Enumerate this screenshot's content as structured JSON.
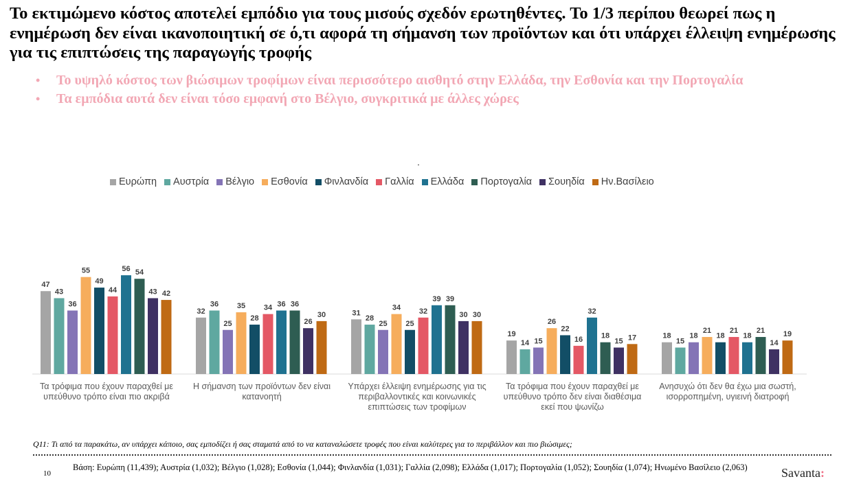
{
  "title": "Το εκτιμώμενο κόστος αποτελεί εμπόδιο για τους μισούς σχεδόν ερωτηθέντες. Το 1/3 περίπου θεωρεί πως η ενημέρωση δεν είναι ικανοποιητική σε ό,τι αφορά τη σήμανση των προϊόντων και ότι υπάρχει έλλειψη ενημέρωσης για τις επιπτώσεις της παραγωγής τροφής",
  "bullets": [
    "Το υψηλό κόστος των βιώσιμων τροφίμων είναι περισσότερο αισθητό στην Ελλάδα, την Εσθονία και την Πορτογαλία",
    "Τα εμπόδια αυτά δεν είναι τόσο εμφανή στο Βέλγιο, συγκριτικά με άλλες χώρες"
  ],
  "bullet_marker": "•",
  "stray_dot": ".",
  "colors": {
    "bullet_text": "#f2a7b4",
    "brand_accent": "#f06f86"
  },
  "chart_data": {
    "type": "bar",
    "categories": [
      "Τα τρόφιμα που έχουν παραχθεί με υπεύθυνο τρόπο είναι πιο ακριβά",
      "Η σήμανση των προϊόντων δεν είναι κατανοητή",
      "Υπάρχει έλλειψη ενημέρωσης για τις περιβαλλοντικές και κοινωνικές επιπτώσεις των τροφίμων",
      "Τα τρόφιμα που έχουν παραχθεί με υπεύθυνο τρόπο δεν είναι διαθέσιμα εκεί που ψωνίζω",
      "Ανησυχώ ότι δεν θα έχω μια σωστή, ισορροπημένη, υγιεινή διατροφή"
    ],
    "category_lines": [
      [
        "Τα τρόφιμα που έχουν παραχθεί με",
        "υπεύθυνο τρόπο είναι πιο ακριβά"
      ],
      [
        "Η σήμανση των προϊόντων δεν είναι",
        "κατανοητή"
      ],
      [
        "Υπάρχει έλλειψη ενημέρωσης για τις",
        "περιβαλλοντικές και κοινωνικές",
        "επιπτώσεις των τροφίμων"
      ],
      [
        "Τα τρόφιμα που έχουν παραχθεί με",
        "υπεύθυνο τρόπο δεν είναι διαθέσιμα",
        "εκεί που ψωνίζω"
      ],
      [
        "Ανησυχώ ότι δεν θα έχω μια σωστή,",
        "ισορροπημένη, υγιεινή διατροφή"
      ]
    ],
    "series": [
      {
        "name": "Ευρώπη",
        "color": "#a5a5a5",
        "values": [
          47,
          32,
          31,
          19,
          18
        ]
      },
      {
        "name": "Αυστρία",
        "color": "#5fa8a0",
        "values": [
          43,
          36,
          28,
          14,
          15
        ]
      },
      {
        "name": "Βέλγιο",
        "color": "#8474b6",
        "values": [
          36,
          25,
          25,
          15,
          18
        ]
      },
      {
        "name": "Εσθονία",
        "color": "#f6ad5c",
        "values": [
          55,
          35,
          34,
          26,
          21
        ]
      },
      {
        "name": "Φινλανδία",
        "color": "#124e66",
        "values": [
          49,
          28,
          25,
          22,
          18
        ]
      },
      {
        "name": "Γαλλία",
        "color": "#e45865",
        "values": [
          44,
          34,
          32,
          16,
          21
        ]
      },
      {
        "name": "Ελλάδα",
        "color": "#1f7290",
        "values": [
          56,
          36,
          39,
          32,
          18
        ]
      },
      {
        "name": "Πορτογαλία",
        "color": "#2e5d52",
        "values": [
          54,
          36,
          39,
          18,
          21
        ]
      },
      {
        "name": "Σουηδία",
        "color": "#3f3163",
        "values": [
          43,
          26,
          30,
          15,
          14
        ]
      },
      {
        "name": "Ην.Βασίλειο",
        "color": "#bf6a14",
        "values": [
          42,
          30,
          30,
          17,
          19
        ]
      }
    ],
    "ylim": [
      0,
      60
    ],
    "grid": false,
    "legend_position": "top"
  },
  "question": "Q11: Τι από τα παρακάτω, αν υπάρχει κάποιο, σας εμποδίζει ή σας σταματά από το να καταναλώσετε τροφές που είναι καλύτερες για το περιβάλλον και πιο βιώσιμες;",
  "page_number": "10",
  "base_text": "Βάση: Ευρώπη (11,439); Αυστρία (1,032); Βέλγιο (1,028); Εσθονία (1,044); Φινλανδία (1,031); Γαλλία (2,098); Ελλάδα (1,017); Πορτογαλία (1,052); Σουηδία (1,074); Ηνωμένο Βασίλειο  (2,063)",
  "brand": {
    "name": "Savanta",
    "accent": ":"
  }
}
